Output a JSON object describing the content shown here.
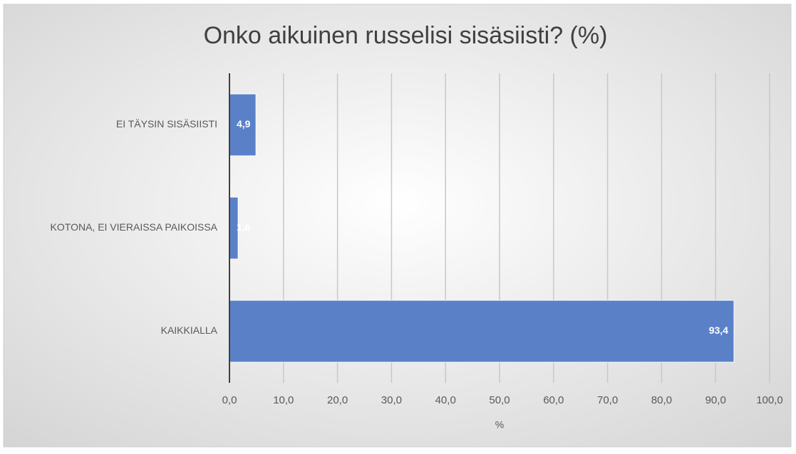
{
  "chart_data": {
    "type": "bar",
    "orientation": "horizontal",
    "title": "Onko aikuinen russelisi sisäsiisti? (%)",
    "x_label": "%",
    "categories": [
      "EI TÄYSIN SISÄSIISTI",
      "KOTONA, EI VIERAISSA PAIKOISSA",
      "KAIKKIALLA"
    ],
    "values": [
      4.9,
      1.6,
      93.4
    ],
    "value_labels": [
      "4,9",
      "1,6",
      "93,4"
    ],
    "color": "#5a80c8",
    "xlim": [
      0,
      100
    ],
    "xticks": [
      {
        "value": 0,
        "label": "0,0"
      },
      {
        "value": 10,
        "label": "10,0"
      },
      {
        "value": 20,
        "label": "20,0"
      },
      {
        "value": 30,
        "label": "30,0"
      },
      {
        "value": 40,
        "label": "40,0"
      },
      {
        "value": 50,
        "label": "50,0"
      },
      {
        "value": 60,
        "label": "60,0"
      },
      {
        "value": 70,
        "label": "70,0"
      },
      {
        "value": 80,
        "label": "80,0"
      },
      {
        "value": 90,
        "label": "90,0"
      },
      {
        "value": 100,
        "label": "100,0"
      }
    ],
    "grid": true
  }
}
